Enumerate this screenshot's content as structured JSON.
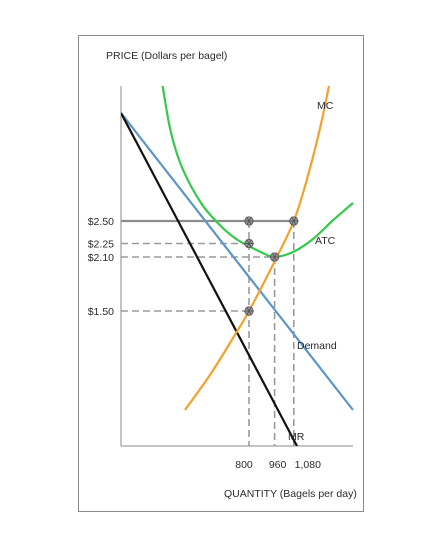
{
  "chart_data": {
    "type": "line",
    "ylabel": "PRICE (Dollars per bagel)",
    "xlabel": "QUANTITY (Bagels per day)",
    "xlim": [
      0,
      1450
    ],
    "ylim": [
      0,
      4
    ],
    "y_ticks": [
      {
        "value": 2.5,
        "label": "$2.50"
      },
      {
        "value": 2.25,
        "label": "$2.25"
      },
      {
        "value": 2.1,
        "label": "$2.10"
      },
      {
        "value": 1.5,
        "label": "$1.50"
      }
    ],
    "x_ticks": [
      {
        "value": 800,
        "label": "800"
      },
      {
        "value": 960,
        "label": "960"
      },
      {
        "value": 1080,
        "label": "1,080"
      }
    ],
    "series": [
      {
        "name": "Demand",
        "color": "#5b95c9",
        "points": [
          [
            0,
            3.7
          ],
          [
            1450,
            0.4
          ]
        ]
      },
      {
        "name": "MR",
        "color": "#111111",
        "points": [
          [
            0,
            3.7
          ],
          [
            1100,
            0
          ]
        ]
      },
      {
        "name": "MC",
        "color": "#f2a22b",
        "points": [
          [
            400,
            0.4
          ],
          [
            560,
            0.8
          ],
          [
            700,
            1.2
          ],
          [
            800,
            1.5
          ],
          [
            960,
            2.05
          ],
          [
            1080,
            2.5
          ],
          [
            1160,
            2.95
          ],
          [
            1240,
            3.5
          ],
          [
            1300,
            4.0
          ]
        ]
      },
      {
        "name": "ATC",
        "color": "#35c94a",
        "points": [
          [
            260,
            4.0
          ],
          [
            310,
            3.5
          ],
          [
            380,
            3.1
          ],
          [
            500,
            2.7
          ],
          [
            620,
            2.45
          ],
          [
            720,
            2.3
          ],
          [
            800,
            2.22
          ],
          [
            880,
            2.15
          ],
          [
            960,
            2.1
          ],
          [
            1080,
            2.16
          ],
          [
            1200,
            2.3
          ],
          [
            1320,
            2.5
          ],
          [
            1450,
            2.7
          ]
        ]
      }
    ],
    "points": [
      {
        "x": 800,
        "y": 2.5
      },
      {
        "x": 800,
        "y": 2.25
      },
      {
        "x": 800,
        "y": 1.5
      },
      {
        "x": 960,
        "y": 2.1
      },
      {
        "x": 1080,
        "y": 2.5
      }
    ],
    "guides": [
      {
        "type": "h",
        "y": 2.5,
        "x_end": 1080,
        "style": "solid"
      },
      {
        "type": "h",
        "y": 2.25,
        "x_end": 800,
        "style": "dashed"
      },
      {
        "type": "h",
        "y": 2.1,
        "x_end": 960,
        "style": "dashed"
      },
      {
        "type": "h",
        "y": 1.5,
        "x_end": 800,
        "style": "dashed"
      },
      {
        "type": "v",
        "x": 800,
        "y_top": 2.5,
        "style": "dashed"
      },
      {
        "type": "v",
        "x": 960,
        "y_top": 2.1,
        "style": "dashed"
      },
      {
        "type": "v",
        "x": 1080,
        "y_top": 2.5,
        "style": "dashed"
      }
    ],
    "grid": false,
    "legend": "inline"
  }
}
